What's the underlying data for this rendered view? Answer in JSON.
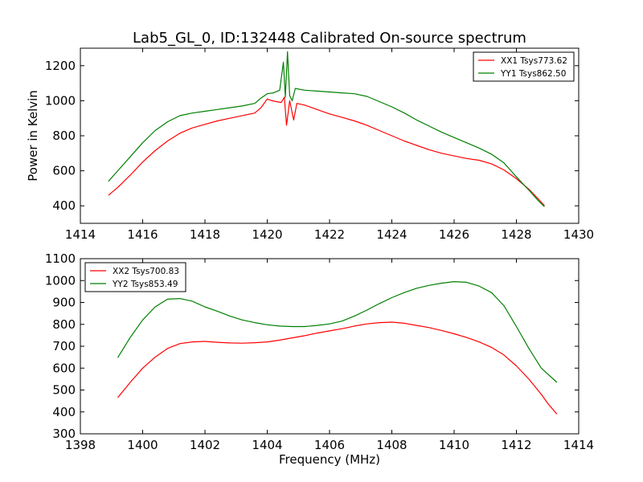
{
  "figure": {
    "title": "Lab5_GL_0, ID:132448 Calibrated On-source spectrum"
  },
  "chart_data": [
    {
      "type": "line",
      "xlabel": "",
      "ylabel": "Power in Kelvin",
      "xlim": [
        1414,
        1430
      ],
      "ylim": [
        300,
        1300
      ],
      "xticks": [
        1414,
        1416,
        1418,
        1420,
        1422,
        1424,
        1426,
        1428,
        1430
      ],
      "yticks": [
        400,
        600,
        800,
        1000,
        1200
      ],
      "legend_position": "top-right",
      "grid": false,
      "series": [
        {
          "name": "XX1 Tsys773.62",
          "color": "#ff0000",
          "points": [
            [
              1414.9,
              460
            ],
            [
              1415.2,
              505
            ],
            [
              1415.6,
              575
            ],
            [
              1416.0,
              650
            ],
            [
              1416.4,
              715
            ],
            [
              1416.8,
              770
            ],
            [
              1417.2,
              815
            ],
            [
              1417.6,
              845
            ],
            [
              1418.0,
              865
            ],
            [
              1418.4,
              885
            ],
            [
              1418.8,
              900
            ],
            [
              1419.2,
              915
            ],
            [
              1419.6,
              930
            ],
            [
              1419.8,
              960
            ],
            [
              1420.0,
              1010
            ],
            [
              1420.15,
              1000
            ],
            [
              1420.3,
              995
            ],
            [
              1420.45,
              990
            ],
            [
              1420.55,
              1020
            ],
            [
              1420.62,
              860
            ],
            [
              1420.72,
              1000
            ],
            [
              1420.85,
              890
            ],
            [
              1420.95,
              985
            ],
            [
              1421.2,
              975
            ],
            [
              1421.6,
              950
            ],
            [
              1422.0,
              925
            ],
            [
              1422.4,
              905
            ],
            [
              1422.8,
              885
            ],
            [
              1423.2,
              860
            ],
            [
              1423.6,
              830
            ],
            [
              1424.0,
              800
            ],
            [
              1424.4,
              770
            ],
            [
              1424.8,
              745
            ],
            [
              1425.2,
              720
            ],
            [
              1425.6,
              700
            ],
            [
              1426.0,
              685
            ],
            [
              1426.4,
              670
            ],
            [
              1426.8,
              660
            ],
            [
              1427.2,
              640
            ],
            [
              1427.6,
              605
            ],
            [
              1428.0,
              555
            ],
            [
              1428.4,
              495
            ],
            [
              1428.7,
              440
            ],
            [
              1428.9,
              400
            ]
          ]
        },
        {
          "name": "YY1 Tsys862.50",
          "color": "#008000",
          "points": [
            [
              1414.9,
              540
            ],
            [
              1415.2,
              600
            ],
            [
              1415.6,
              680
            ],
            [
              1416.0,
              760
            ],
            [
              1416.4,
              830
            ],
            [
              1416.8,
              880
            ],
            [
              1417.2,
              915
            ],
            [
              1417.6,
              930
            ],
            [
              1418.0,
              940
            ],
            [
              1418.4,
              950
            ],
            [
              1418.8,
              960
            ],
            [
              1419.2,
              970
            ],
            [
              1419.6,
              985
            ],
            [
              1419.8,
              1015
            ],
            [
              1420.0,
              1040
            ],
            [
              1420.2,
              1045
            ],
            [
              1420.4,
              1060
            ],
            [
              1420.52,
              1220
            ],
            [
              1420.58,
              1020
            ],
            [
              1420.65,
              1280
            ],
            [
              1420.72,
              1030
            ],
            [
              1420.8,
              1000
            ],
            [
              1420.9,
              1070
            ],
            [
              1421.2,
              1060
            ],
            [
              1421.6,
              1055
            ],
            [
              1422.0,
              1050
            ],
            [
              1422.4,
              1045
            ],
            [
              1422.8,
              1040
            ],
            [
              1423.2,
              1025
            ],
            [
              1423.6,
              995
            ],
            [
              1424.0,
              965
            ],
            [
              1424.4,
              930
            ],
            [
              1424.8,
              890
            ],
            [
              1425.2,
              855
            ],
            [
              1425.6,
              820
            ],
            [
              1426.0,
              790
            ],
            [
              1426.4,
              760
            ],
            [
              1426.8,
              730
            ],
            [
              1427.2,
              695
            ],
            [
              1427.6,
              645
            ],
            [
              1428.0,
              565
            ],
            [
              1428.4,
              490
            ],
            [
              1428.7,
              430
            ],
            [
              1428.9,
              395
            ]
          ]
        }
      ]
    },
    {
      "type": "line",
      "xlabel": "Frequency (MHz)",
      "ylabel": "",
      "xlim": [
        1398,
        1414
      ],
      "ylim": [
        300,
        1100
      ],
      "xticks": [
        1398,
        1400,
        1402,
        1404,
        1406,
        1408,
        1410,
        1412,
        1414
      ],
      "yticks": [
        300,
        400,
        500,
        600,
        700,
        800,
        900,
        1000,
        1100
      ],
      "legend_position": "top-left",
      "grid": false,
      "series": [
        {
          "name": "XX2 Tsys700.83",
          "color": "#ff0000",
          "points": [
            [
              1399.2,
              465
            ],
            [
              1399.6,
              535
            ],
            [
              1400.0,
              600
            ],
            [
              1400.4,
              650
            ],
            [
              1400.8,
              690
            ],
            [
              1401.2,
              712
            ],
            [
              1401.6,
              720
            ],
            [
              1402.0,
              722
            ],
            [
              1402.4,
              718
            ],
            [
              1402.8,
              715
            ],
            [
              1403.2,
              714
            ],
            [
              1403.6,
              716
            ],
            [
              1404.0,
              720
            ],
            [
              1404.4,
              728
            ],
            [
              1404.8,
              738
            ],
            [
              1405.2,
              748
            ],
            [
              1405.6,
              760
            ],
            [
              1406.0,
              770
            ],
            [
              1406.4,
              780
            ],
            [
              1406.8,
              792
            ],
            [
              1407.2,
              802
            ],
            [
              1407.6,
              808
            ],
            [
              1408.0,
              810
            ],
            [
              1408.4,
              805
            ],
            [
              1408.8,
              795
            ],
            [
              1409.2,
              785
            ],
            [
              1409.6,
              772
            ],
            [
              1410.0,
              757
            ],
            [
              1410.4,
              740
            ],
            [
              1410.8,
              720
            ],
            [
              1411.2,
              695
            ],
            [
              1411.6,
              660
            ],
            [
              1412.0,
              610
            ],
            [
              1412.4,
              550
            ],
            [
              1412.8,
              480
            ],
            [
              1413.0,
              440
            ],
            [
              1413.3,
              390
            ]
          ]
        },
        {
          "name": "YY2 Tsys853.49",
          "color": "#008000",
          "points": [
            [
              1399.2,
              648
            ],
            [
              1399.6,
              740
            ],
            [
              1400.0,
              820
            ],
            [
              1400.4,
              880
            ],
            [
              1400.8,
              915
            ],
            [
              1401.2,
              918
            ],
            [
              1401.6,
              905
            ],
            [
              1402.0,
              880
            ],
            [
              1402.4,
              860
            ],
            [
              1402.8,
              838
            ],
            [
              1403.2,
              820
            ],
            [
              1403.6,
              808
            ],
            [
              1404.0,
              798
            ],
            [
              1404.4,
              792
            ],
            [
              1404.8,
              790
            ],
            [
              1405.2,
              790
            ],
            [
              1405.6,
              795
            ],
            [
              1406.0,
              802
            ],
            [
              1406.4,
              815
            ],
            [
              1406.8,
              838
            ],
            [
              1407.2,
              865
            ],
            [
              1407.6,
              895
            ],
            [
              1408.0,
              922
            ],
            [
              1408.4,
              945
            ],
            [
              1408.8,
              965
            ],
            [
              1409.2,
              978
            ],
            [
              1409.6,
              988
            ],
            [
              1410.0,
              995
            ],
            [
              1410.4,
              992
            ],
            [
              1410.8,
              975
            ],
            [
              1411.2,
              945
            ],
            [
              1411.6,
              885
            ],
            [
              1412.0,
              790
            ],
            [
              1412.4,
              690
            ],
            [
              1412.8,
              600
            ],
            [
              1413.3,
              535
            ]
          ]
        }
      ]
    }
  ]
}
